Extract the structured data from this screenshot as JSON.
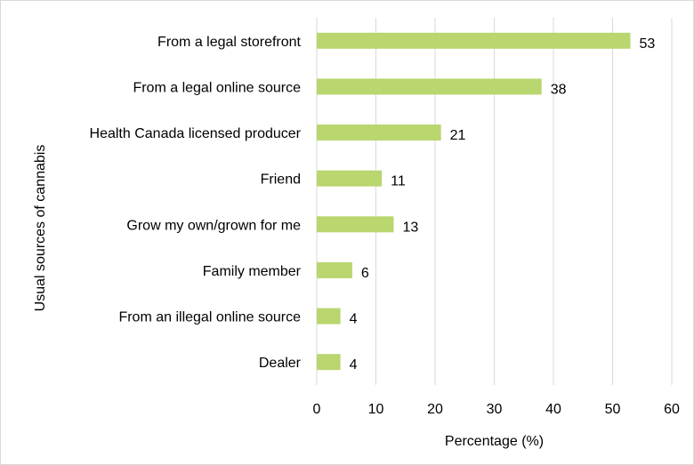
{
  "chart_data": {
    "type": "bar",
    "orientation": "horizontal",
    "categories": [
      "From a legal storefront",
      "From a legal online source",
      "Health Canada licensed producer",
      "Friend",
      "Grow my own/grown for me",
      "Family member",
      "From an illegal online source",
      "Dealer"
    ],
    "values": [
      53,
      38,
      21,
      11,
      13,
      6,
      4,
      4
    ],
    "title": "",
    "xlabel": "Percentage (%)",
    "ylabel": "Usual sources of cannabis",
    "xlim": [
      0,
      60
    ],
    "xticks": [
      0,
      10,
      20,
      30,
      40,
      50,
      60
    ],
    "grid": "vertical",
    "bar_color": "#b9d66f",
    "data_labels": true
  }
}
